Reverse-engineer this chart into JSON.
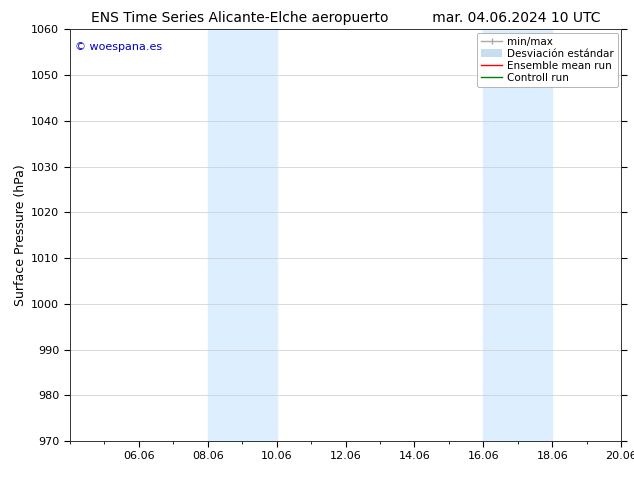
{
  "title_left": "ENS Time Series Alicante-Elche aeropuerto",
  "title_right": "mar. 04.06.2024 10 UTC",
  "ylabel": "Surface Pressure (hPa)",
  "ylim": [
    970,
    1060
  ],
  "yticks": [
    970,
    980,
    990,
    1000,
    1010,
    1020,
    1030,
    1040,
    1050,
    1060
  ],
  "xtick_labels": [
    "06.06",
    "08.06",
    "10.06",
    "12.06",
    "14.06",
    "16.06",
    "18.06",
    "20.06"
  ],
  "xtick_positions": [
    2,
    4,
    6,
    8,
    10,
    12,
    14,
    16
  ],
  "xlim": [
    0,
    16
  ],
  "shaded_regions": [
    {
      "x_start": 4,
      "x_end": 6,
      "color": "#ddeeff"
    },
    {
      "x_start": 12,
      "x_end": 14,
      "color": "#ddeeff"
    }
  ],
  "watermark_text": "© woespana.es",
  "watermark_color": "#0000cc",
  "legend_entries": [
    {
      "label": "min/max",
      "color": "#aaaaaa",
      "lw": 1.0
    },
    {
      "label": "Desviación estándar",
      "color": "#c8ddf0",
      "lw": 5
    },
    {
      "label": "Ensemble mean run",
      "color": "red",
      "lw": 1.0
    },
    {
      "label": "Controll run",
      "color": "green",
      "lw": 1.0
    }
  ],
  "bg_color": "#ffffff",
  "plot_bg_color": "#ffffff",
  "grid_color": "#cccccc",
  "title_fontsize": 10,
  "tick_fontsize": 8,
  "ylabel_fontsize": 9,
  "legend_fontsize": 7.5
}
